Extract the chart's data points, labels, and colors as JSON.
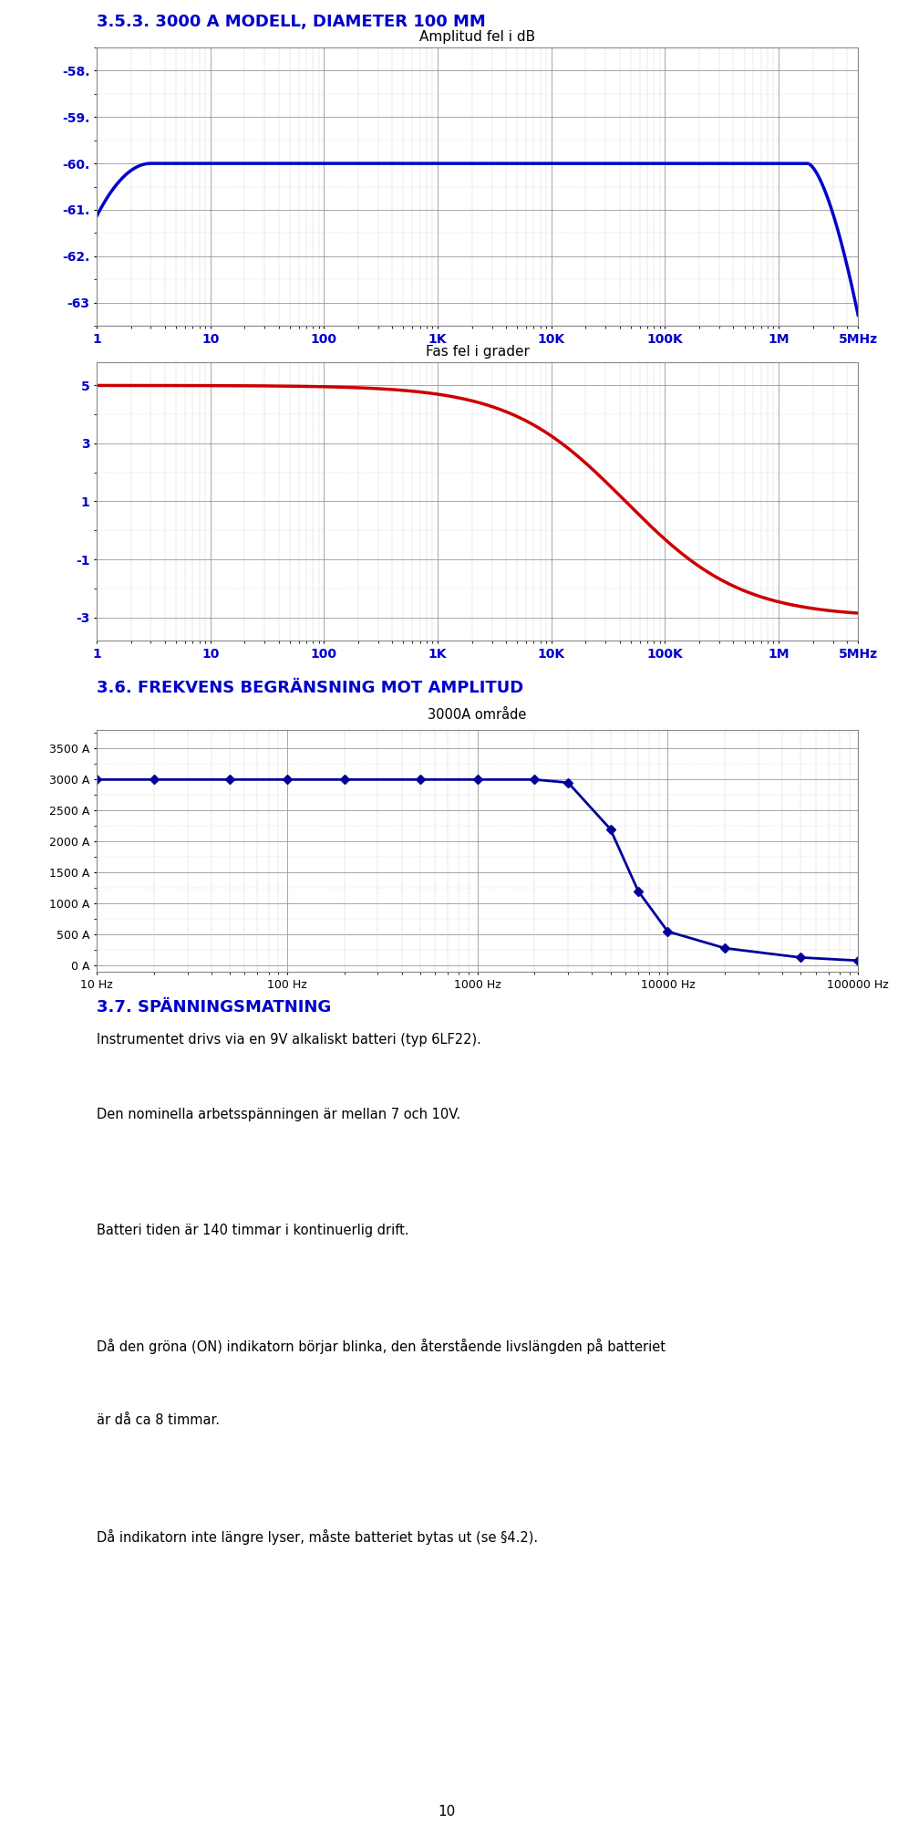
{
  "title1": "3.5.3. 3000 A MODELL, DIAMETER 100 MM",
  "chart1_title": "Amplitud fel i dB",
  "chart1_ylabel_ticks": [
    "-58.",
    "-59.",
    "-60.",
    "-61.",
    "-62.",
    "-63"
  ],
  "chart1_yticks": [
    -58,
    -59,
    -60,
    -61,
    -62,
    -63
  ],
  "chart1_ylim": [
    -63.5,
    -57.5
  ],
  "chart1_xticklabels": [
    "1",
    "10",
    "100",
    "1K",
    "10K",
    "100K",
    "1M",
    "5MHz"
  ],
  "chart1_xtick_positions": [
    1,
    10,
    100,
    1000,
    10000,
    100000,
    1000000,
    5000000
  ],
  "chart1_xlim": [
    1,
    5000000
  ],
  "chart1_line_color": "#0000CC",
  "chart2_title": "Fas fel i grader",
  "chart2_ylabel_ticks": [
    "5",
    "3",
    "1",
    "-1",
    "-3"
  ],
  "chart2_yticks": [
    5,
    3,
    1,
    -1,
    -3
  ],
  "chart2_ylim": [
    -3.8,
    5.8
  ],
  "chart2_xticklabels": [
    "1",
    "10",
    "100",
    "1K",
    "10K",
    "100K",
    "1M",
    "5MHz"
  ],
  "chart2_xtick_positions": [
    1,
    10,
    100,
    1000,
    10000,
    100000,
    1000000,
    5000000
  ],
  "chart2_xlim": [
    1,
    5000000
  ],
  "chart2_line_color": "#CC0000",
  "title2": "3.6. FREKVENS BEGRÄNSNING MOT AMPLITUD",
  "chart3_subtitle": "3000A område",
  "chart3_yticks": [
    0,
    500,
    1000,
    1500,
    2000,
    2500,
    3000,
    3500
  ],
  "chart3_ylabel_ticks": [
    "0 A",
    "500 A",
    "1000 A",
    "1500 A",
    "2000 A",
    "2500 A",
    "3000 A",
    "3500 A"
  ],
  "chart3_ylim": [
    -100,
    3800
  ],
  "chart3_xticklabels": [
    "10 Hz",
    "100 Hz",
    "1000 Hz",
    "10000 Hz",
    "100000 Hz"
  ],
  "chart3_xtick_positions": [
    10,
    100,
    1000,
    10000,
    100000
  ],
  "chart3_xlim": [
    10,
    100000
  ],
  "chart3_line_color": "#000099",
  "section_title": "3.7. SPÄNNINGSMATNING",
  "body_lines": [
    "Instrumentet drivs via en 9V alkaliskt batteri (typ 6LF22).",
    "Den nominella arbetsspänningen är mellan 7 och 10V.",
    "",
    "Batteri tiden är 140 timmar i kontinuerlig drift.",
    "",
    "Då den gröna (ON) indikatorn börjar blinka, den återstående livslängden på batteriet",
    "är då ca 8 timmar.",
    "",
    "Då indikatorn inte längre lyser, måste batteriet bytas ut (se §4.2)."
  ],
  "page_number": "10",
  "bg": "#ffffff",
  "blue": "#0000CC",
  "dark": "#111111",
  "grid_maj": "#999999",
  "grid_min": "#bbbbbb"
}
